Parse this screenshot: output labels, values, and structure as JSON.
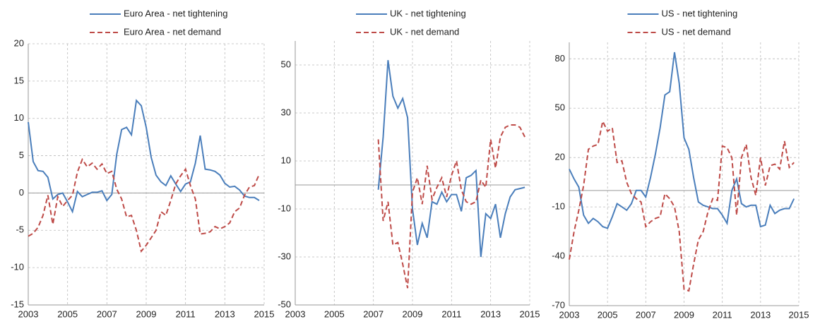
{
  "chart_data": [
    {
      "type": "line",
      "x": [
        2003,
        2003.25,
        2003.5,
        2003.75,
        2004,
        2004.25,
        2004.5,
        2004.75,
        2005,
        2005.25,
        2005.5,
        2005.75,
        2006,
        2006.25,
        2006.5,
        2006.75,
        2007,
        2007.25,
        2007.5,
        2007.75,
        2008,
        2008.25,
        2008.5,
        2008.75,
        2009,
        2009.25,
        2009.5,
        2009.75,
        2010,
        2010.25,
        2010.5,
        2010.75,
        2011,
        2011.25,
        2011.5,
        2011.75,
        2012,
        2012.25,
        2012.5,
        2012.75,
        2013,
        2013.25,
        2013.5,
        2013.75,
        2014,
        2014.25,
        2014.5,
        2014.75
      ],
      "series": [
        {
          "name": "Euro Area - net tightening",
          "color": "#4a7ebb",
          "dash": false,
          "values": [
            9.5,
            4.2,
            3.0,
            2.9,
            2.1,
            -0.8,
            -0.2,
            0,
            -1.2,
            -2.5,
            0.2,
            -0.5,
            -0.2,
            0.1,
            0.1,
            0.3,
            -1.0,
            -0.2,
            5.2,
            8.5,
            8.8,
            7.8,
            12.4,
            11.7,
            8.8,
            4.8,
            2.4,
            1.5,
            1.0,
            2.3,
            1.2,
            0.2,
            1.2,
            1.5,
            4.0,
            7.7,
            3.2,
            3.1,
            2.9,
            2.4,
            1.3,
            0.8,
            0.9,
            0.4,
            -0.4,
            -0.6,
            -0.6,
            -1.0
          ]
        },
        {
          "name": "Euro Area - net demand",
          "color": "#be4b48",
          "dash": true,
          "values": [
            -5.8,
            -5.4,
            -4.6,
            -3.0,
            -0.3,
            -4.2,
            -0.5,
            -1.8,
            -1.0,
            -0.3,
            2.8,
            4.5,
            3.5,
            4.0,
            3.2,
            3.9,
            2.6,
            2.9,
            0.5,
            -0.8,
            -3.2,
            -3.0,
            -5.0,
            -7.8,
            -7.0,
            -6.0,
            -5.0,
            -2.5,
            -3.0,
            -1.0,
            1.2,
            2.3,
            3.2,
            1.0,
            -0.8,
            -5.5,
            -5.4,
            -5.2,
            -4.5,
            -4.8,
            -4.5,
            -4.0,
            -2.5,
            -2.0,
            -0.3,
            0.8,
            1.0,
            2.5
          ]
        }
      ],
      "xlim": [
        2003,
        2015
      ],
      "xticks": [
        2003,
        2005,
        2007,
        2009,
        2011,
        2013,
        2015
      ],
      "ylim": [
        -15,
        20
      ],
      "yticks": [
        -15,
        -10,
        -5,
        0,
        5,
        10,
        15,
        20
      ],
      "grid": true
    },
    {
      "type": "line",
      "x": [
        2003,
        2003.25,
        2003.5,
        2003.75,
        2004,
        2004.25,
        2004.5,
        2004.75,
        2005,
        2005.25,
        2005.5,
        2005.75,
        2006,
        2006.25,
        2006.5,
        2006.75,
        2007,
        2007.25,
        2007.5,
        2007.75,
        2008,
        2008.25,
        2008.5,
        2008.75,
        2009,
        2009.25,
        2009.5,
        2009.75,
        2010,
        2010.25,
        2010.5,
        2010.75,
        2011,
        2011.25,
        2011.5,
        2011.75,
        2012,
        2012.25,
        2012.5,
        2012.75,
        2013,
        2013.25,
        2013.5,
        2013.75,
        2014,
        2014.25,
        2014.5,
        2014.75
      ],
      "series": [
        {
          "name": "UK - net tightening",
          "color": "#4a7ebb",
          "dash": false,
          "values": [
            null,
            null,
            null,
            null,
            null,
            null,
            null,
            null,
            null,
            null,
            null,
            null,
            null,
            null,
            null,
            null,
            null,
            -2,
            20,
            52,
            37,
            32,
            36,
            28,
            -10,
            -25,
            -16,
            -22,
            -7,
            -8,
            -3,
            -7,
            -4,
            -4,
            -11,
            3,
            4,
            6,
            -30,
            -12,
            -14,
            -8,
            -22,
            -12,
            -5,
            -2,
            -1.5,
            -1
          ]
        },
        {
          "name": "UK - net demand",
          "color": "#be4b48",
          "dash": true,
          "values": [
            null,
            null,
            null,
            null,
            null,
            null,
            null,
            null,
            null,
            null,
            null,
            null,
            null,
            null,
            null,
            null,
            null,
            19,
            -15,
            -7,
            -25,
            -24,
            -33,
            -43,
            -3,
            3,
            -8,
            8,
            -6,
            -1,
            3,
            -5,
            4,
            10,
            -2,
            -7,
            -8,
            -7,
            2,
            -1,
            19,
            7,
            20,
            24,
            25,
            25,
            24,
            20
          ]
        }
      ],
      "xlim": [
        2003,
        2015
      ],
      "xticks": [
        2003,
        2005,
        2007,
        2009,
        2011,
        2013,
        2015
      ],
      "ylim": [
        -50,
        60
      ],
      "yticks": [
        -50,
        -30,
        -10,
        10,
        30,
        50
      ],
      "grid": true
    },
    {
      "type": "line",
      "x": [
        2003,
        2003.25,
        2003.5,
        2003.75,
        2004,
        2004.25,
        2004.5,
        2004.75,
        2005,
        2005.25,
        2005.5,
        2005.75,
        2006,
        2006.25,
        2006.5,
        2006.75,
        2007,
        2007.25,
        2007.5,
        2007.75,
        2008,
        2008.25,
        2008.5,
        2008.75,
        2009,
        2009.25,
        2009.5,
        2009.75,
        2010,
        2010.25,
        2010.5,
        2010.75,
        2011,
        2011.25,
        2011.5,
        2011.75,
        2012,
        2012.25,
        2012.5,
        2012.75,
        2013,
        2013.25,
        2013.5,
        2013.75,
        2014,
        2014.25,
        2014.5,
        2014.75
      ],
      "series": [
        {
          "name": "US - net tightening",
          "color": "#4a7ebb",
          "dash": false,
          "values": [
            13,
            7,
            2,
            -15,
            -20,
            -17,
            -19,
            -22,
            -23,
            -16,
            -8,
            -10,
            -12,
            -8,
            0,
            0,
            -4,
            8,
            22,
            38,
            58,
            60,
            84,
            65,
            32,
            25,
            8,
            -7,
            -9,
            -10,
            -11,
            -11,
            -15,
            -20,
            0,
            7,
            -8,
            -10,
            -9,
            -9,
            -22,
            -21,
            -9,
            -14,
            -12,
            -11,
            -11,
            -5
          ]
        },
        {
          "name": "US - net demand",
          "color": "#be4b48",
          "dash": true,
          "values": [
            -42,
            -25,
            -12,
            3,
            25,
            27,
            28,
            42,
            36,
            38,
            17,
            18,
            5,
            -2,
            -5,
            -7,
            -22,
            -19,
            -17,
            -16,
            -2,
            -5,
            -10,
            -25,
            -60,
            -61,
            -45,
            -30,
            -25,
            -13,
            -5,
            -6,
            27,
            26,
            20,
            -15,
            20,
            28,
            8,
            -3,
            20,
            3,
            15,
            16,
            13,
            30,
            14,
            17
          ]
        }
      ],
      "xlim": [
        2003,
        2015
      ],
      "xticks": [
        2003,
        2005,
        2007,
        2009,
        2011,
        2013,
        2015
      ],
      "ylim": [
        -70,
        90
      ],
      "yticks": [
        -70,
        -40,
        -10,
        20,
        50,
        80
      ],
      "grid": true
    }
  ]
}
